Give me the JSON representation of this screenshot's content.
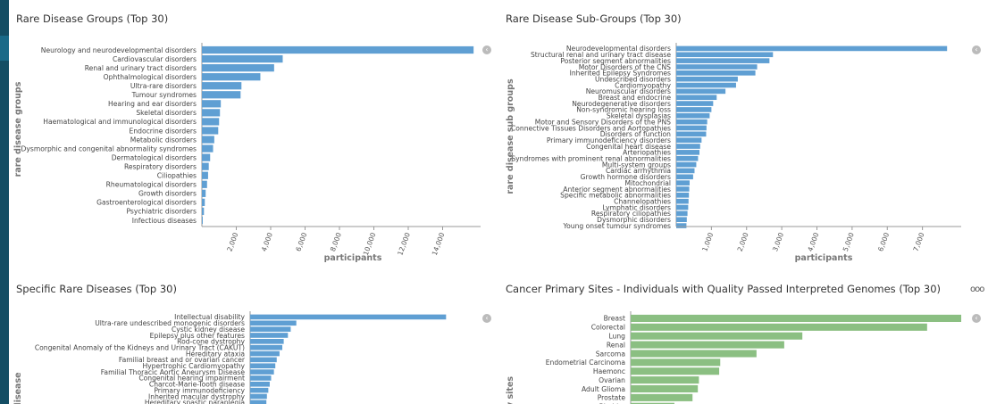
{
  "colors": {
    "blue": "#5f9fd3",
    "green": "#8bbf82",
    "sidebar": "#144e64"
  },
  "ui": {
    "collapse_icon": "chevron-left-icon",
    "more_icon": "ooo"
  },
  "chart_data": [
    {
      "type": "bar",
      "orientation": "horizontal",
      "title": "Rare Disease Groups (Top 30)",
      "ylabel": "rare disease groups",
      "xlabel": "participants",
      "categories": [
        "Neurology and neurodevelopmental disorders",
        "Cardiovascular disorders",
        "Renal and urinary tract disorders",
        "Ophthalmological disorders",
        "Ultra-rare disorders",
        "Tumour syndromes",
        "Hearing and ear disorders",
        "Skeletal disorders",
        "Haematological and immunological disorders",
        "Endocrine disorders",
        "Metabolic disorders",
        "Dysmorphic and congenital abnormality syndromes",
        "Dermatological disorders",
        "Respiratory disorders",
        "Ciliopathies",
        "Rheumatological disorders",
        "Growth disorders",
        "Gastroenterological disorders",
        "Psychiatric disorders",
        "Infectious diseases"
      ],
      "values": [
        15800,
        4700,
        4200,
        3400,
        2300,
        2250,
        1100,
        1050,
        1000,
        950,
        720,
        650,
        480,
        400,
        360,
        300,
        220,
        170,
        120,
        40
      ],
      "xticks": [
        2000,
        4000,
        6000,
        8000,
        10000,
        12000,
        14000
      ],
      "xtick_labels": [
        "2,000",
        "4,000",
        "6,000",
        "8,000",
        "10,000",
        "12,000",
        "14,000"
      ],
      "xlim": [
        0,
        16000
      ],
      "color": "#5f9fd3"
    },
    {
      "type": "bar",
      "orientation": "horizontal",
      "title": "Rare Disease Sub-Groups (Top 30)",
      "ylabel": "rare disease sub groups",
      "xlabel": "participants",
      "categories": [
        "Neurodevelopmental disorders",
        "Structural renal and urinary tract disease",
        "Posterior segment abnormalities",
        "Motor Disorders of the CNS",
        "Inherited Epilepsy Syndromes",
        "Undescribed disorders",
        "Cardiomyopathy",
        "Neuromuscular disorders",
        "Breast and endocrine",
        "Neurodegenerative disorders",
        "Non-syndromic hearing loss",
        "Skeletal dysplasias",
        "Motor and Sensory Disorders of the PNS",
        "Connective Tissues Disorders and Aortopathies",
        "Disorders of function",
        "Primary immunodeficiency disorders",
        "Congenital heart disease",
        "Arteriopathies",
        "Syndromes with prominent renal abnormalities",
        "Multi-system groups",
        "Cardiac arrhythmia",
        "Growth hormone disorders",
        "Mitochondrial",
        "Anterior segment abnormalities",
        "Specific metabolic abnormalities",
        "Channelopathies",
        "Lymphatic disorders",
        "Respiratory ciliopathies",
        "Dysmorphic disorders",
        "Young onset tumour syndromes"
      ],
      "values": [
        7700,
        2750,
        2650,
        2300,
        2250,
        1750,
        1700,
        1400,
        1150,
        1050,
        1000,
        950,
        880,
        860,
        850,
        720,
        680,
        660,
        620,
        570,
        520,
        480,
        380,
        370,
        360,
        350,
        340,
        320,
        300,
        290
      ],
      "xticks": [
        1000,
        2000,
        3000,
        4000,
        5000,
        6000,
        7000
      ],
      "xtick_labels": [
        "1,000",
        "2,000",
        "3,000",
        "4,000",
        "5,000",
        "6,000",
        "7,000"
      ],
      "xlim": [
        0,
        8000
      ],
      "color": "#5f9fd3"
    },
    {
      "type": "bar",
      "orientation": "horizontal",
      "title": "Specific Rare Diseases (Top 30)",
      "ylabel": "re disease",
      "categories": [
        "Intellectual disability",
        "Ultra-rare undescribed monogenic disorders",
        "Cystic kidney disease",
        "Epilepsy plus other features",
        "Rod-cone dystrophy",
        "Congenital Anomaly of the Kidneys and Urinary Tract (CAKUT)",
        "Hereditary ataxia",
        "Familial breast and or ovarian cancer",
        "Hypertrophic Cardiomyopathy",
        "Familial Thoracic Aortic Aneurysm Disease",
        "Congenital hearing impairment",
        "Charcot-Marie-Tooth disease",
        "Primary immunodeficiency",
        "Inherited macular dystrophy",
        "Hereditary spastic paraplegia"
      ],
      "values": [
        7000,
        1650,
        1450,
        1350,
        1200,
        1150,
        1050,
        950,
        900,
        850,
        750,
        700,
        650,
        600,
        580
      ],
      "xlim": [
        0,
        7500
      ],
      "color": "#5f9fd3"
    },
    {
      "type": "bar",
      "orientation": "horizontal",
      "title": "Cancer Primary Sites - Individuals with Quality Passed Interpreted Genomes (Top 30)",
      "ylabel": "ary sites",
      "categories": [
        "Breast",
        "Colorectal",
        "Lung",
        "Renal",
        "Sarcoma",
        "Endometrial Carcinoma",
        "Haemonc",
        "Ovarian",
        "Adult Glioma",
        "Prostate",
        "Bladder"
      ],
      "values": [
        3100,
        2780,
        1610,
        1440,
        1180,
        840,
        830,
        640,
        630,
        580,
        410
      ],
      "xlim": [
        0,
        3150
      ],
      "color": "#8bbf82"
    }
  ]
}
